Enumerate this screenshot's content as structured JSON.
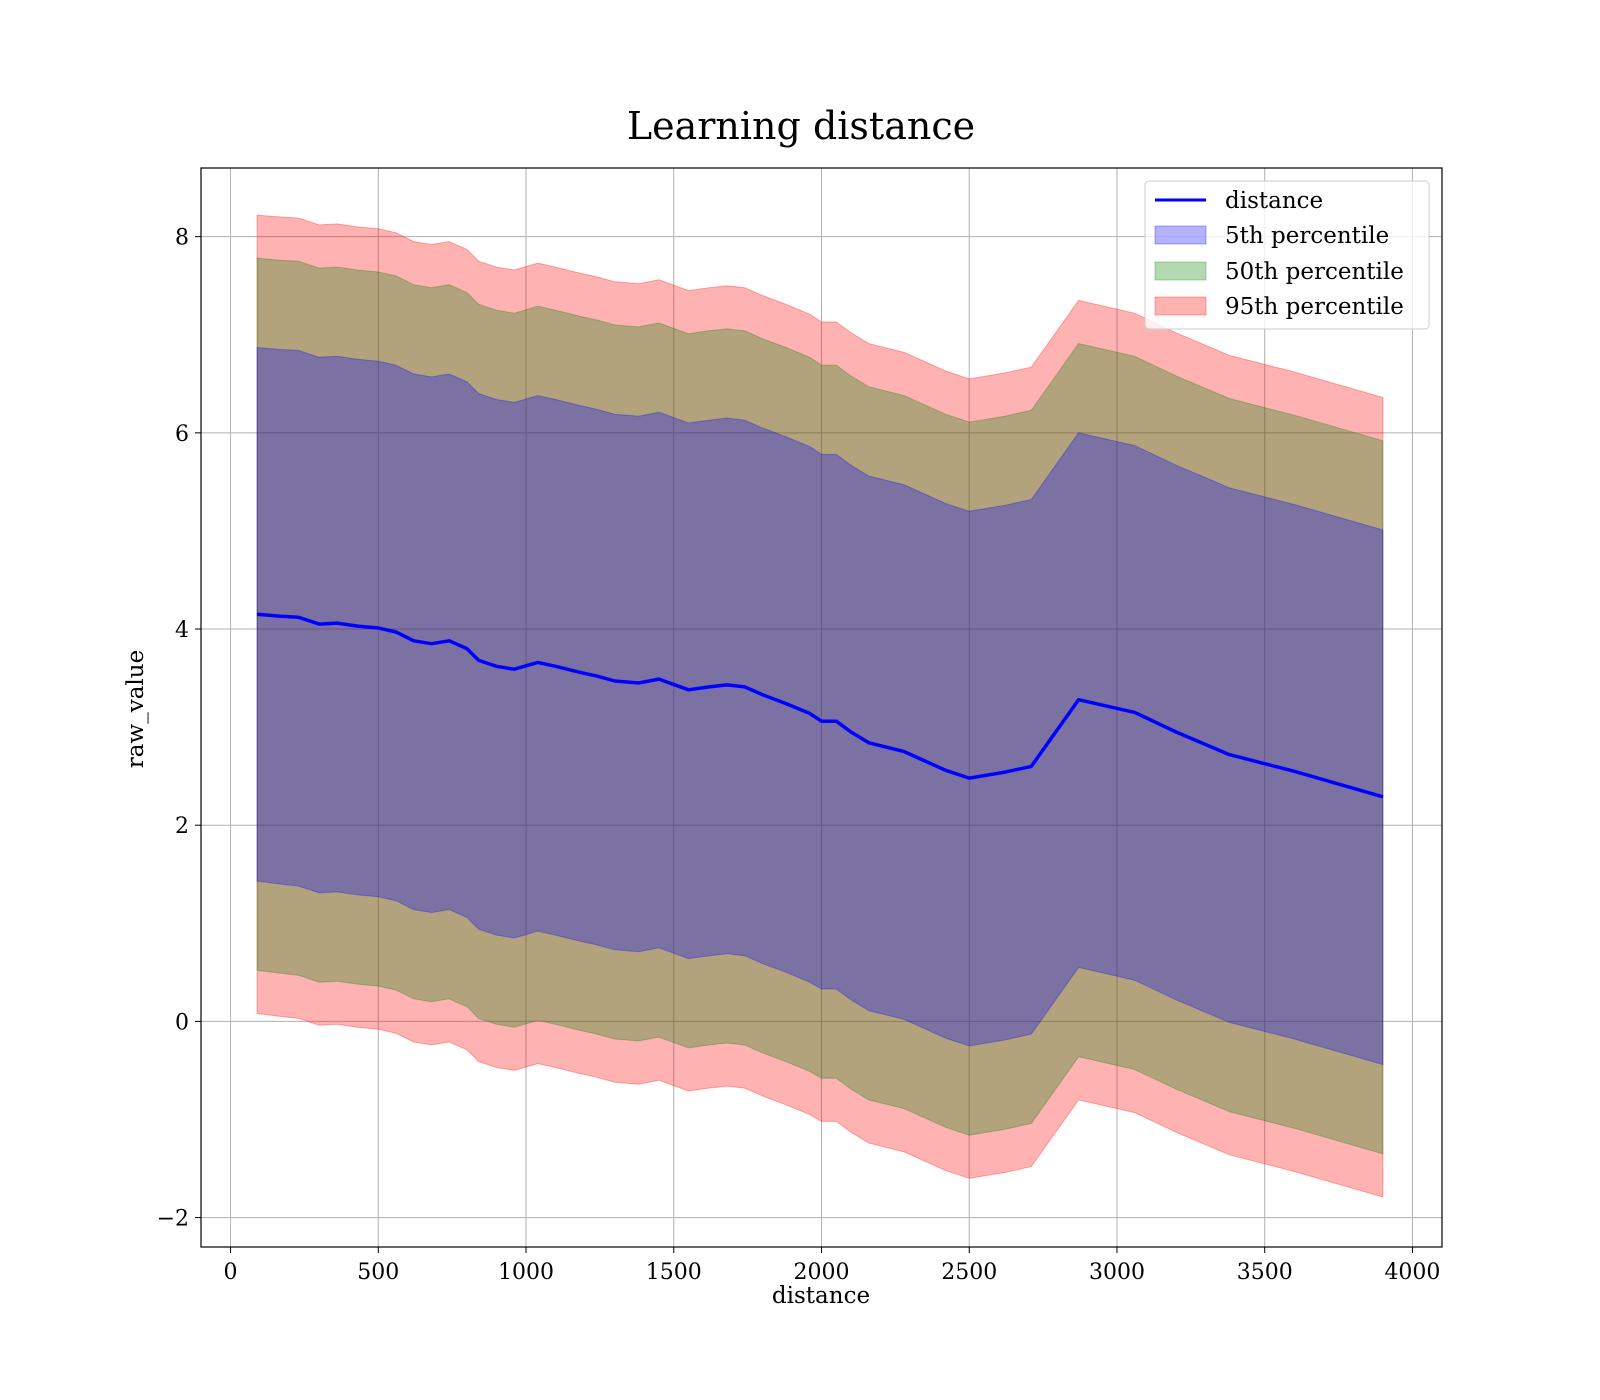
{
  "chart_data": {
    "type": "area",
    "title": "Learning distance",
    "xlabel": "distance",
    "ylabel": "raw_value",
    "xlim": [
      -100,
      4100
    ],
    "ylim": [
      -2.3,
      8.7
    ],
    "xticks": [
      0,
      500,
      1000,
      1500,
      2000,
      2500,
      3000,
      3500,
      4000
    ],
    "yticks": [
      -2,
      0,
      2,
      4,
      6,
      8
    ],
    "ytick_labels": [
      "−2",
      "0",
      "2",
      "4",
      "6",
      "8"
    ],
    "grid": true,
    "legend_position": "top-right",
    "x": [
      90,
      170,
      230,
      300,
      360,
      430,
      500,
      560,
      620,
      680,
      740,
      800,
      840,
      900,
      960,
      1040,
      1100,
      1180,
      1240,
      1300,
      1380,
      1450,
      1550,
      1620,
      1680,
      1740,
      1800,
      1880,
      1960,
      2000,
      2050,
      2100,
      2160,
      2280,
      2420,
      2500,
      2620,
      2710,
      2870,
      3060,
      3200,
      3380,
      3600,
      3900
    ],
    "series": [
      {
        "name": "distance",
        "kind": "line",
        "color": "#0000ff",
        "values": [
          4.15,
          4.13,
          4.12,
          4.05,
          4.06,
          4.03,
          4.01,
          3.97,
          3.88,
          3.85,
          3.88,
          3.8,
          3.68,
          3.62,
          3.59,
          3.66,
          3.62,
          3.56,
          3.52,
          3.47,
          3.45,
          3.49,
          3.38,
          3.41,
          3.43,
          3.41,
          3.33,
          3.24,
          3.14,
          3.06,
          3.06,
          2.95,
          2.84,
          2.75,
          2.56,
          2.48,
          2.54,
          2.6,
          3.28,
          3.15,
          2.95,
          2.72,
          2.55,
          2.29
        ]
      },
      {
        "name": "5th percentile",
        "kind": "band",
        "color": "#0000ff",
        "lower": [
          1.43,
          1.4,
          1.38,
          1.31,
          1.32,
          1.29,
          1.27,
          1.23,
          1.14,
          1.11,
          1.14,
          1.06,
          0.94,
          0.88,
          0.85,
          0.92,
          0.88,
          0.82,
          0.78,
          0.73,
          0.71,
          0.75,
          0.64,
          0.67,
          0.69,
          0.67,
          0.59,
          0.5,
          0.4,
          0.33,
          0.33,
          0.22,
          0.11,
          0.02,
          -0.17,
          -0.25,
          -0.19,
          -0.13,
          0.55,
          0.42,
          0.22,
          -0.01,
          -0.18,
          -0.44
        ],
        "upper": [
          6.87,
          6.85,
          6.84,
          6.77,
          6.78,
          6.75,
          6.73,
          6.69,
          6.6,
          6.57,
          6.6,
          6.52,
          6.4,
          6.34,
          6.31,
          6.38,
          6.34,
          6.28,
          6.24,
          6.19,
          6.17,
          6.21,
          6.1,
          6.13,
          6.15,
          6.13,
          6.05,
          5.96,
          5.86,
          5.78,
          5.78,
          5.67,
          5.56,
          5.47,
          5.28,
          5.2,
          5.26,
          5.32,
          6.0,
          5.87,
          5.67,
          5.44,
          5.27,
          5.01
        ]
      },
      {
        "name": "50th percentile",
        "kind": "band",
        "color": "#008000",
        "lower": [
          0.52,
          0.49,
          0.47,
          0.4,
          0.41,
          0.38,
          0.36,
          0.32,
          0.23,
          0.2,
          0.23,
          0.15,
          0.03,
          -0.03,
          -0.06,
          0.01,
          -0.03,
          -0.09,
          -0.13,
          -0.18,
          -0.2,
          -0.16,
          -0.27,
          -0.24,
          -0.22,
          -0.24,
          -0.32,
          -0.41,
          -0.51,
          -0.58,
          -0.58,
          -0.69,
          -0.8,
          -0.89,
          -1.08,
          -1.16,
          -1.1,
          -1.04,
          -0.36,
          -0.49,
          -0.69,
          -0.92,
          -1.09,
          -1.35
        ],
        "upper": [
          7.78,
          7.76,
          7.75,
          7.68,
          7.69,
          7.66,
          7.64,
          7.6,
          7.51,
          7.48,
          7.51,
          7.43,
          7.31,
          7.25,
          7.22,
          7.29,
          7.25,
          7.19,
          7.15,
          7.1,
          7.08,
          7.12,
          7.01,
          7.04,
          7.06,
          7.04,
          6.96,
          6.87,
          6.77,
          6.69,
          6.69,
          6.58,
          6.47,
          6.38,
          6.19,
          6.11,
          6.17,
          6.23,
          6.91,
          6.78,
          6.58,
          6.35,
          6.18,
          5.92
        ]
      },
      {
        "name": "95th percentile",
        "kind": "band",
        "color": "#ff0000",
        "lower": [
          0.08,
          0.05,
          0.03,
          -0.04,
          -0.03,
          -0.06,
          -0.08,
          -0.12,
          -0.21,
          -0.24,
          -0.21,
          -0.29,
          -0.41,
          -0.47,
          -0.5,
          -0.43,
          -0.47,
          -0.53,
          -0.57,
          -0.62,
          -0.64,
          -0.6,
          -0.71,
          -0.68,
          -0.66,
          -0.68,
          -0.76,
          -0.85,
          -0.95,
          -1.02,
          -1.02,
          -1.13,
          -1.24,
          -1.33,
          -1.52,
          -1.6,
          -1.54,
          -1.48,
          -0.8,
          -0.93,
          -1.13,
          -1.36,
          -1.53,
          -1.79
        ],
        "upper": [
          8.22,
          8.2,
          8.19,
          8.12,
          8.13,
          8.1,
          8.08,
          8.04,
          7.95,
          7.92,
          7.95,
          7.87,
          7.75,
          7.69,
          7.66,
          7.73,
          7.69,
          7.63,
          7.59,
          7.54,
          7.52,
          7.56,
          7.45,
          7.48,
          7.5,
          7.48,
          7.4,
          7.31,
          7.21,
          7.13,
          7.13,
          7.02,
          6.91,
          6.82,
          6.63,
          6.55,
          6.61,
          6.67,
          7.35,
          7.22,
          7.02,
          6.79,
          6.62,
          6.36
        ]
      }
    ]
  }
}
